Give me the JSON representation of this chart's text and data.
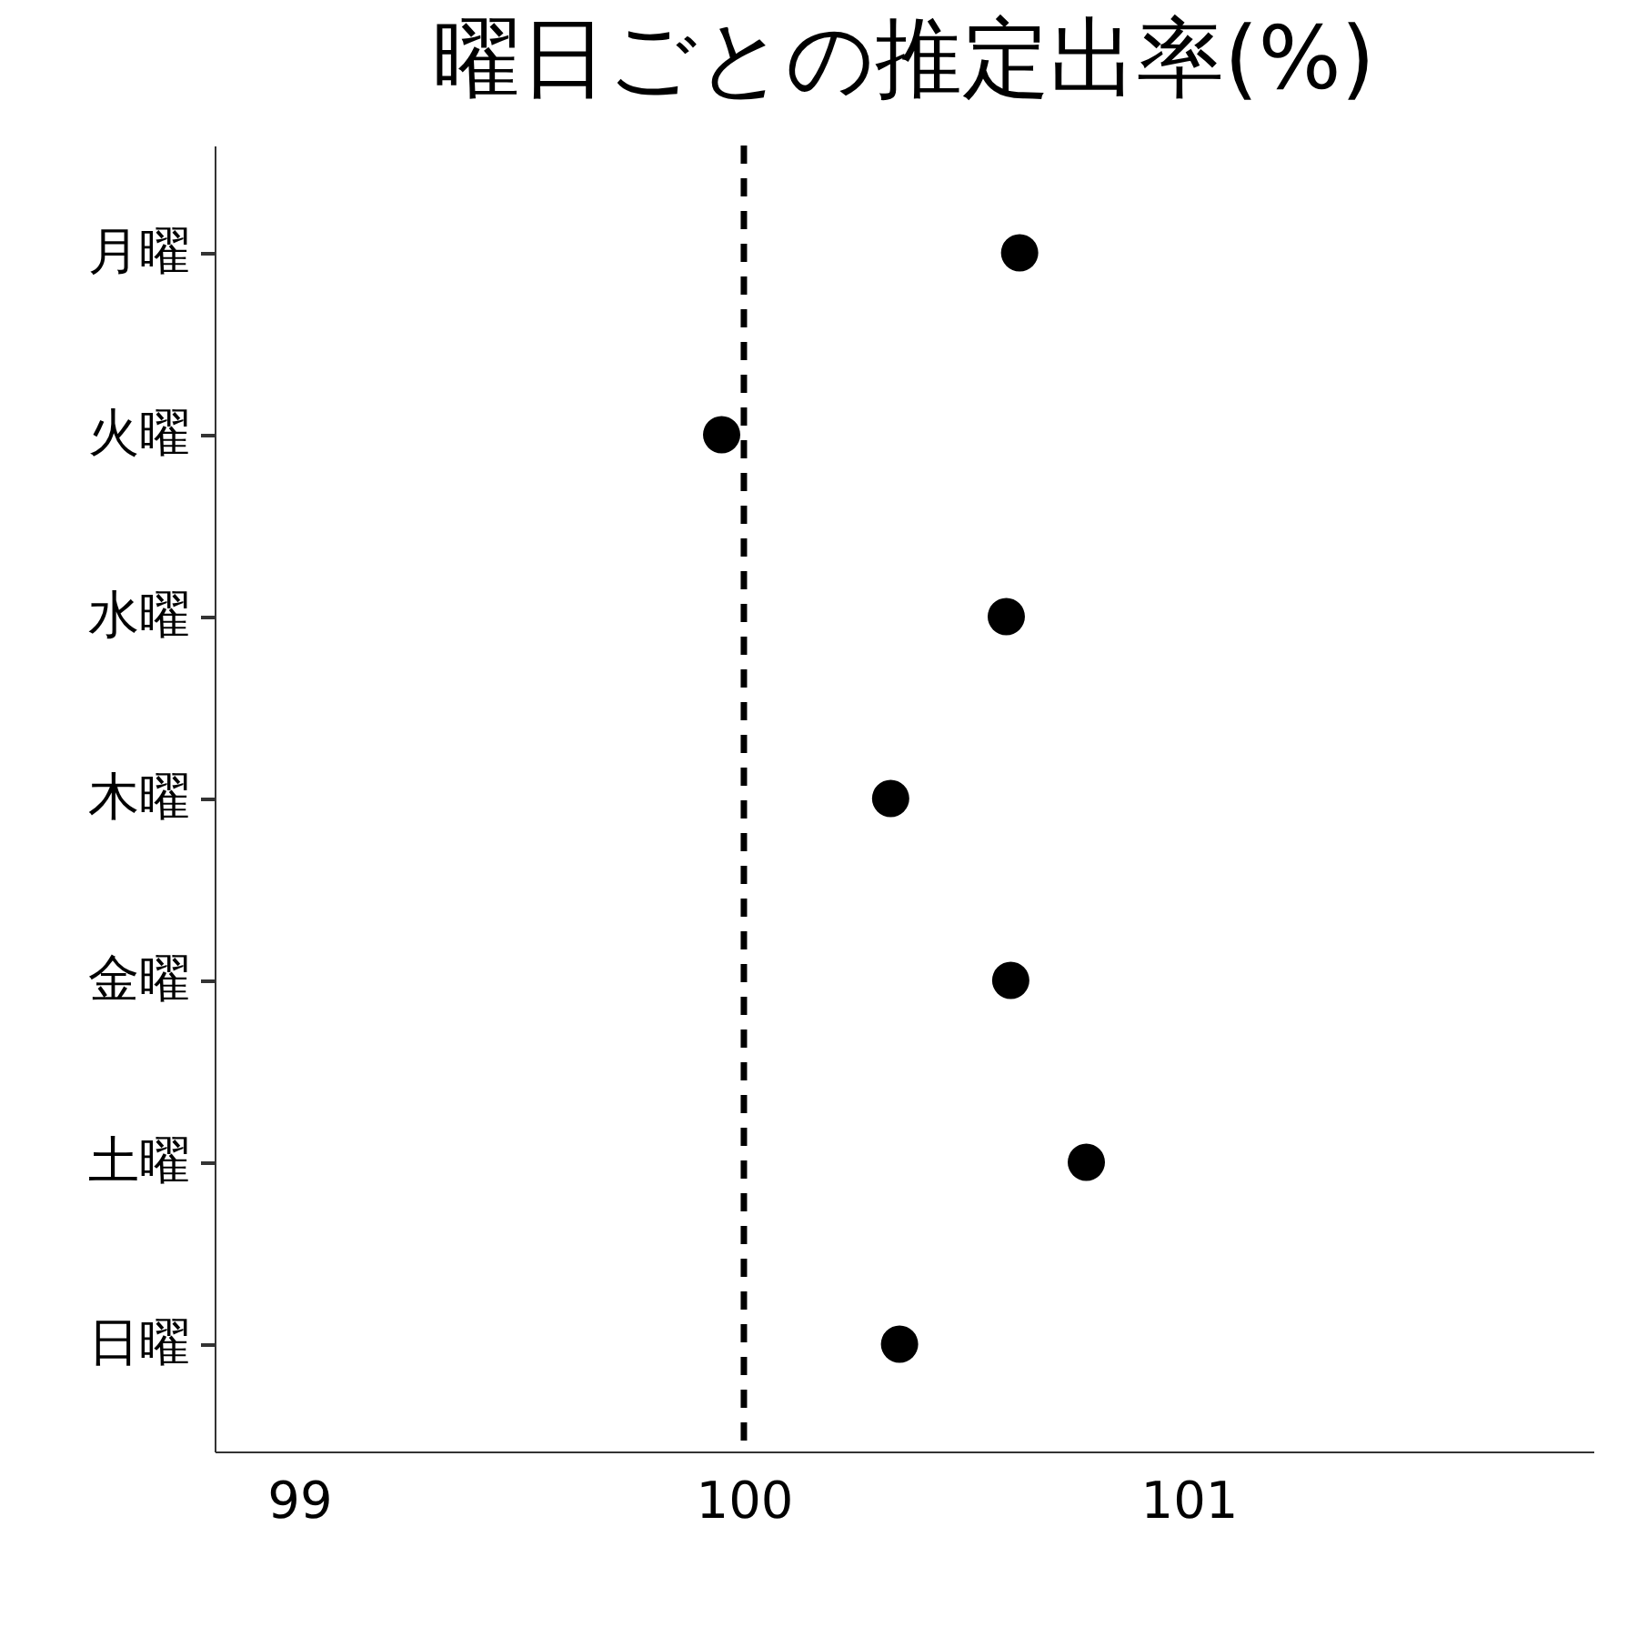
{
  "chart_data": {
    "type": "scatter",
    "title": "曜日ごとの推定出率(%)",
    "categories": [
      "月曜",
      "火曜",
      "水曜",
      "木曜",
      "金曜",
      "土曜",
      "日曜"
    ],
    "orientation": "horizontal",
    "series": [
      {
        "color": "#000000",
        "values": [
          100.62,
          99.95,
          100.59,
          100.33,
          100.6,
          100.77,
          100.35
        ]
      }
    ],
    "xlim": [
      98.81,
      101.91
    ],
    "xticks": [
      99,
      100,
      101
    ],
    "ref_lines": [
      {
        "axis": "x",
        "value": 100,
        "color": "#000000",
        "line_style": "dashed"
      }
    ],
    "marker": "circle",
    "grid": false
  }
}
